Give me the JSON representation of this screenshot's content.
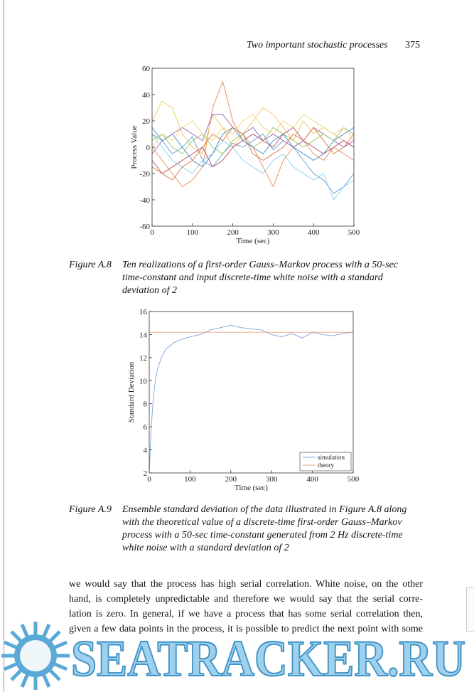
{
  "header": {
    "title": "Two important stochastic processes",
    "page_number": "375"
  },
  "chart_data": [
    {
      "type": "line",
      "ylabel": "Process Value",
      "xlabel": "Time (sec)",
      "xlim": [
        0,
        500
      ],
      "xticks": [
        0,
        100,
        200,
        300,
        400,
        500
      ],
      "ylim": [
        -60,
        60
      ],
      "yticks": [
        -60,
        -40,
        -20,
        0,
        20,
        40,
        60
      ],
      "x": [
        0,
        25,
        50,
        75,
        100,
        125,
        150,
        175,
        200,
        225,
        250,
        275,
        300,
        325,
        350,
        375,
        400,
        425,
        450,
        475,
        500
      ],
      "series": [
        {
          "color": "#5b9bd5",
          "values": [
            10,
            5,
            -5,
            0,
            8,
            -10,
            -15,
            -5,
            3,
            0,
            5,
            10,
            -2,
            5,
            0,
            -10,
            -20,
            -25,
            -35,
            -30,
            -20
          ]
        },
        {
          "color": "#e4895a",
          "values": [
            0,
            -10,
            -20,
            -30,
            -25,
            -15,
            30,
            50,
            20,
            5,
            0,
            -15,
            -30,
            -10,
            0,
            5,
            -5,
            -10,
            0,
            -5,
            -10
          ]
        },
        {
          "color": "#efc35a",
          "values": [
            20,
            35,
            30,
            10,
            0,
            -5,
            25,
            15,
            0,
            10,
            20,
            30,
            25,
            15,
            5,
            20,
            10,
            15,
            10,
            5,
            0
          ]
        },
        {
          "color": "#9c5fae",
          "values": [
            -5,
            5,
            10,
            15,
            10,
            5,
            25,
            25,
            15,
            10,
            15,
            5,
            10,
            5,
            0,
            5,
            15,
            10,
            5,
            0,
            5
          ]
        },
        {
          "color": "#95c45a",
          "values": [
            5,
            10,
            0,
            -5,
            5,
            10,
            0,
            -5,
            5,
            10,
            0,
            5,
            15,
            10,
            5,
            0,
            5,
            10,
            5,
            15,
            10
          ]
        },
        {
          "color": "#7fd0f0",
          "values": [
            10,
            0,
            -10,
            -15,
            -20,
            -10,
            -5,
            5,
            0,
            -10,
            -15,
            -20,
            -10,
            -5,
            -15,
            -20,
            -25,
            -20,
            -40,
            -30,
            -25
          ]
        },
        {
          "color": "#b8485d",
          "values": [
            -10,
            -20,
            -15,
            -10,
            -5,
            0,
            -15,
            -10,
            0,
            5,
            10,
            5,
            0,
            10,
            15,
            5,
            0,
            -5,
            0,
            5,
            0
          ]
        },
        {
          "color": "#3f87c7",
          "values": [
            15,
            5,
            10,
            0,
            -10,
            -15,
            -5,
            10,
            15,
            5,
            0,
            -5,
            5,
            10,
            0,
            -5,
            -10,
            -5,
            5,
            10,
            15
          ]
        },
        {
          "color": "#dd7040",
          "values": [
            -15,
            -20,
            -25,
            -15,
            -10,
            0,
            10,
            5,
            15,
            10,
            -5,
            -10,
            -5,
            0,
            10,
            5,
            15,
            5,
            -5,
            0,
            10
          ]
        },
        {
          "color": "#f0d070",
          "values": [
            0,
            10,
            5,
            15,
            20,
            10,
            5,
            15,
            10,
            20,
            25,
            15,
            10,
            20,
            15,
            25,
            20,
            15,
            10,
            15,
            5
          ]
        }
      ]
    },
    {
      "type": "line",
      "ylabel": "Standard Deviation",
      "xlabel": "Time (sec)",
      "xlim": [
        0,
        500
      ],
      "xticks": [
        0,
        100,
        200,
        300,
        400,
        500
      ],
      "ylim": [
        2,
        16
      ],
      "yticks": [
        2,
        4,
        6,
        8,
        10,
        12,
        14,
        16
      ],
      "legend": "lower right",
      "series": [
        {
          "name": "simulation",
          "color": "#7aa6dc",
          "x": [
            0,
            5,
            10,
            15,
            20,
            30,
            40,
            50,
            60,
            80,
            100,
            125,
            150,
            175,
            200,
            225,
            250,
            275,
            300,
            325,
            350,
            375,
            400,
            425,
            450,
            475,
            500
          ],
          "values": [
            2,
            6,
            8.5,
            10,
            11,
            12,
            12.7,
            13,
            13.3,
            13.6,
            13.8,
            14,
            14.4,
            14.6,
            14.8,
            14.6,
            14.5,
            14.4,
            14,
            13.8,
            14.1,
            13.7,
            14.2,
            14,
            13.9,
            14.1,
            14.2
          ]
        },
        {
          "name": "theory",
          "color": "#e9a77c",
          "x": [
            0,
            500
          ],
          "values": [
            14.2,
            14.2
          ]
        }
      ]
    }
  ],
  "captions": [
    {
      "label": "Figure A.8",
      "lines": [
        "Ten realizations of a first-order Gauss–Markov process with a 50-sec",
        "time-constant and input discrete-time white noise with a standard",
        "deviation of 2"
      ]
    },
    {
      "label": "Figure A.9",
      "lines": [
        "Ensemble standard deviation of the data illustrated in Figure A.8 along",
        "with the theoretical value of a discrete-time first-order Gauss–Markov",
        "process with a 50-sec time-constant generated from 2 Hz discrete-time",
        "white noise with a standard deviation of 2"
      ]
    }
  ],
  "body": [
    "we would say that the process has high serial correlation. White noise, on the other",
    "hand, is completely unpredictable and therefore we would say that the serial corre-",
    "lation is zero. In general, if we have a process that has some serial correlation then,",
    "given a few data points in the process, it is possible to predict the next point with some"
  ],
  "watermark": "SEATRACKER.RU"
}
